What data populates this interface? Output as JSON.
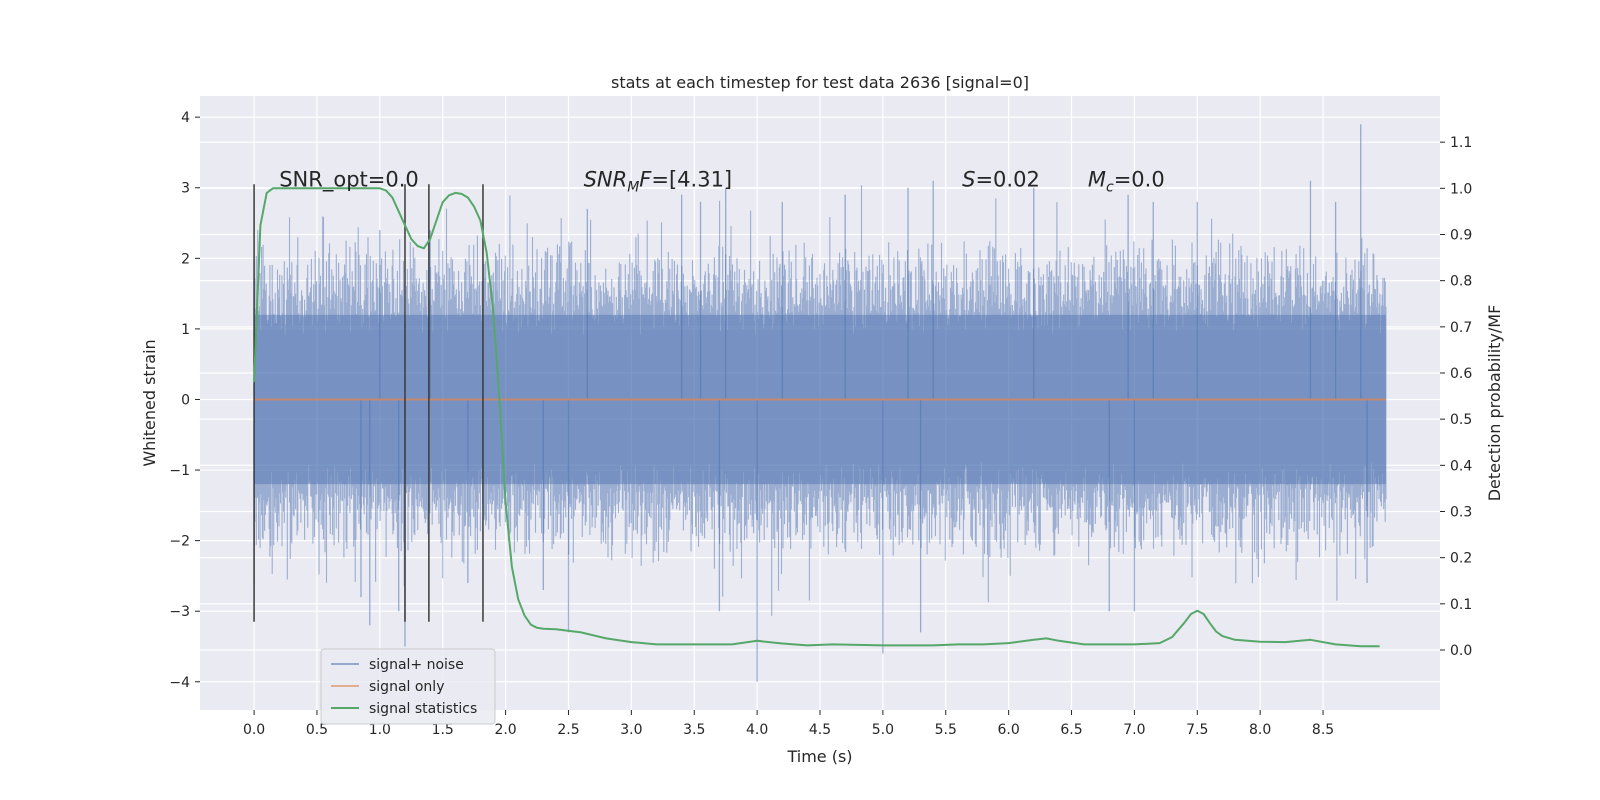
{
  "chart_data": {
    "type": "line",
    "title": "stats at each timestep for test data 2636 [signal=0]",
    "xlabel": "Time (s)",
    "ylabel": "Whitened strain",
    "y2label": "Detection probability/MF",
    "xlim": [
      -0.43,
      9.43
    ],
    "ylim": [
      -4.4,
      4.3
    ],
    "y2lim": [
      -0.13,
      1.2
    ],
    "xticks": [
      "0.0",
      "0.5",
      "1.0",
      "1.5",
      "2.0",
      "2.5",
      "3.0",
      "3.5",
      "4.0",
      "4.5",
      "5.0",
      "5.5",
      "6.0",
      "6.5",
      "7.0",
      "7.5",
      "8.0",
      "8.5"
    ],
    "yticks": [
      "4",
      "3",
      "2",
      "1",
      "0",
      "−1",
      "−2",
      "−3",
      "−4"
    ],
    "y2ticks": [
      "1.1",
      "1.0",
      "0.9",
      "0.8",
      "0.7",
      "0.6",
      "0.5",
      "0.4",
      "0.3",
      "0.2",
      "0.1",
      "0.0"
    ],
    "grid": true,
    "legend_position": "lower-left",
    "series": [
      {
        "name": "signal+ noise",
        "color": "#4c72b0",
        "axis": "left",
        "x_range": [
          0.0,
          9.0
        ],
        "typical_range": [
          -1.8,
          1.8
        ],
        "peaks": [
          {
            "x": 0.0,
            "value": 1.3
          },
          {
            "x": 0.0,
            "value": -2.6
          },
          {
            "x": 0.85,
            "value": -2.8
          },
          {
            "x": 0.92,
            "value": -3.2
          },
          {
            "x": 1.0,
            "value": 2.4
          },
          {
            "x": 1.15,
            "value": -3.0
          },
          {
            "x": 1.2,
            "value": -3.5
          },
          {
            "x": 1.4,
            "value": 2.4
          },
          {
            "x": 1.7,
            "value": -2.6
          },
          {
            "x": 2.3,
            "value": -2.7
          },
          {
            "x": 2.5,
            "value": -3.3
          },
          {
            "x": 2.65,
            "value": 2.7
          },
          {
            "x": 3.4,
            "value": 2.9
          },
          {
            "x": 3.55,
            "value": 2.8
          },
          {
            "x": 3.7,
            "value": -3.0
          },
          {
            "x": 3.75,
            "value": 3.0
          },
          {
            "x": 4.0,
            "value": -4.0
          },
          {
            "x": 4.2,
            "value": 2.8
          },
          {
            "x": 4.7,
            "value": 2.9
          },
          {
            "x": 5.0,
            "value": -3.6
          },
          {
            "x": 5.2,
            "value": 3.0
          },
          {
            "x": 5.3,
            "value": -3.3
          },
          {
            "x": 5.4,
            "value": 3.1
          },
          {
            "x": 6.2,
            "value": 3.0
          },
          {
            "x": 6.8,
            "value": -3.0
          },
          {
            "x": 6.95,
            "value": 2.9
          },
          {
            "x": 7.0,
            "value": -3.0
          },
          {
            "x": 7.15,
            "value": 2.8
          },
          {
            "x": 7.5,
            "value": 2.8
          },
          {
            "x": 8.4,
            "value": 3.1
          },
          {
            "x": 8.6,
            "value": 2.8
          },
          {
            "x": 8.8,
            "value": 3.9
          },
          {
            "x": 8.85,
            "value": -2.6
          }
        ]
      },
      {
        "name": "signal only",
        "color": "#dd8452",
        "axis": "left",
        "x": [
          0.0,
          9.0
        ],
        "values": [
          0.0,
          0.0
        ]
      },
      {
        "name": "signal statistics",
        "color": "#55a868",
        "axis": "right",
        "x": [
          0.0,
          0.05,
          0.1,
          0.15,
          0.2,
          0.3,
          0.5,
          0.8,
          1.0,
          1.05,
          1.1,
          1.15,
          1.2,
          1.25,
          1.3,
          1.35,
          1.4,
          1.45,
          1.5,
          1.55,
          1.6,
          1.65,
          1.7,
          1.75,
          1.8,
          1.85,
          1.9,
          1.95,
          2.0,
          2.05,
          2.1,
          2.15,
          2.2,
          2.25,
          2.3,
          2.4,
          2.6,
          2.8,
          3.0,
          3.2,
          3.5,
          3.8,
          4.0,
          4.2,
          4.4,
          4.6,
          5.0,
          5.4,
          5.6,
          5.8,
          6.0,
          6.2,
          6.3,
          6.4,
          6.6,
          6.8,
          7.0,
          7.2,
          7.3,
          7.4,
          7.45,
          7.5,
          7.55,
          7.6,
          7.65,
          7.7,
          7.8,
          8.0,
          8.2,
          8.4,
          8.6,
          8.8,
          8.95
        ],
        "values": [
          0.58,
          0.92,
          0.99,
          1.0,
          1.0,
          1.0,
          1.0,
          1.0,
          1.0,
          0.995,
          0.98,
          0.95,
          0.92,
          0.89,
          0.875,
          0.87,
          0.89,
          0.93,
          0.97,
          0.985,
          0.99,
          0.988,
          0.98,
          0.96,
          0.93,
          0.86,
          0.74,
          0.55,
          0.32,
          0.18,
          0.11,
          0.075,
          0.055,
          0.048,
          0.046,
          0.045,
          0.038,
          0.025,
          0.017,
          0.012,
          0.012,
          0.012,
          0.02,
          0.014,
          0.01,
          0.012,
          0.01,
          0.01,
          0.012,
          0.012,
          0.015,
          0.022,
          0.025,
          0.02,
          0.012,
          0.012,
          0.012,
          0.015,
          0.028,
          0.06,
          0.078,
          0.085,
          0.078,
          0.058,
          0.04,
          0.03,
          0.022,
          0.018,
          0.017,
          0.022,
          0.012,
          0.008,
          0.008
        ]
      }
    ],
    "vlines": {
      "color": "#3a3a3a",
      "x": [
        0.0,
        1.2,
        1.39,
        1.82
      ],
      "y_from": -3.15,
      "y_to": 3.05
    },
    "annotations": [
      {
        "id": "snr-opt",
        "text": "SNR_opt=0.0",
        "x": 0.2,
        "y": 3.02
      },
      {
        "id": "snr-mf",
        "prefix": "SNR",
        "sub": "M",
        "suffix": "F=[4.31]",
        "x": 2.62,
        "y": 3.02
      },
      {
        "id": "s",
        "prefix": "S",
        "suffix": "=0.02",
        "x": 5.63,
        "y": 3.02
      },
      {
        "id": "mc",
        "prefix": "M",
        "sub": "c",
        "suffix": "=0.0",
        "x": 6.63,
        "y": 3.02
      }
    ]
  }
}
